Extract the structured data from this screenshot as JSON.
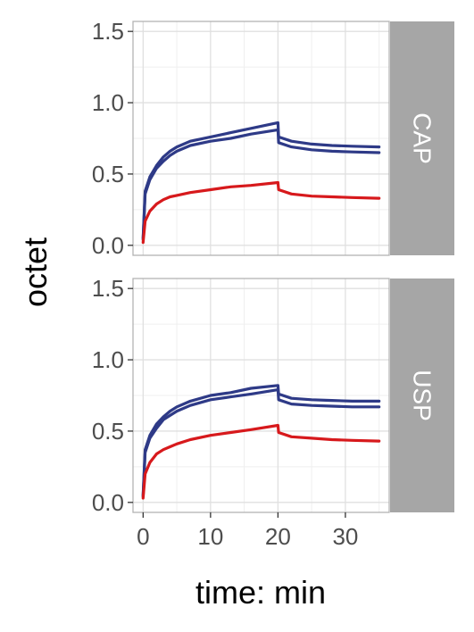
{
  "chart_data": {
    "type": "line",
    "xlabel": "time: min",
    "ylabel": "octet",
    "xlim": [
      -1.5,
      36.5
    ],
    "ylim": [
      -0.07,
      1.57
    ],
    "x_ticks": [
      0,
      10,
      20,
      30
    ],
    "x_tick_labels": [
      "0",
      "10",
      "20",
      "30"
    ],
    "y_ticks": [
      0.0,
      0.5,
      1.0,
      1.5
    ],
    "y_tick_labels": [
      "0.0",
      "0.5",
      "1.0",
      "1.5"
    ],
    "grid": true,
    "legend": "none",
    "colors": {
      "blue": "#2e3a87",
      "red": "#d7191c",
      "strip": "#a6a6a6",
      "grid": "#e0e0e0"
    },
    "facets": [
      {
        "strip_label": "CAP",
        "series": [
          {
            "color": "#2e3a87",
            "points": [
              [
                0,
                0.05
              ],
              [
                0.3,
                0.38
              ],
              [
                1,
                0.48
              ],
              [
                2,
                0.56
              ],
              [
                3,
                0.62
              ],
              [
                4,
                0.66
              ],
              [
                5,
                0.69
              ],
              [
                7,
                0.73
              ],
              [
                10,
                0.76
              ],
              [
                13,
                0.79
              ],
              [
                16,
                0.82
              ],
              [
                20,
                0.86
              ],
              [
                20.1,
                0.76
              ],
              [
                22,
                0.73
              ],
              [
                25,
                0.71
              ],
              [
                28,
                0.7
              ],
              [
                31,
                0.695
              ],
              [
                35,
                0.69
              ]
            ]
          },
          {
            "color": "#2e3a87",
            "points": [
              [
                0,
                0.04
              ],
              [
                0.3,
                0.36
              ],
              [
                1,
                0.46
              ],
              [
                2,
                0.54
              ],
              [
                3,
                0.59
              ],
              [
                4,
                0.63
              ],
              [
                5,
                0.66
              ],
              [
                7,
                0.7
              ],
              [
                10,
                0.73
              ],
              [
                13,
                0.75
              ],
              [
                16,
                0.78
              ],
              [
                20,
                0.81
              ],
              [
                20.1,
                0.72
              ],
              [
                22,
                0.69
              ],
              [
                25,
                0.67
              ],
              [
                28,
                0.66
              ],
              [
                31,
                0.655
              ],
              [
                35,
                0.65
              ]
            ]
          },
          {
            "color": "#d7191c",
            "points": [
              [
                0,
                0.02
              ],
              [
                0.3,
                0.17
              ],
              [
                1,
                0.24
              ],
              [
                2,
                0.29
              ],
              [
                3,
                0.32
              ],
              [
                4,
                0.34
              ],
              [
                5,
                0.35
              ],
              [
                7,
                0.37
              ],
              [
                10,
                0.39
              ],
              [
                13,
                0.41
              ],
              [
                16,
                0.42
              ],
              [
                20,
                0.44
              ],
              [
                20.1,
                0.39
              ],
              [
                22,
                0.36
              ],
              [
                25,
                0.345
              ],
              [
                28,
                0.34
              ],
              [
                31,
                0.335
              ],
              [
                35,
                0.33
              ]
            ]
          }
        ]
      },
      {
        "strip_label": "USP",
        "series": [
          {
            "color": "#2e3a87",
            "points": [
              [
                0,
                0.05
              ],
              [
                0.3,
                0.37
              ],
              [
                1,
                0.47
              ],
              [
                2,
                0.55
              ],
              [
                3,
                0.6
              ],
              [
                4,
                0.64
              ],
              [
                5,
                0.67
              ],
              [
                7,
                0.71
              ],
              [
                10,
                0.75
              ],
              [
                13,
                0.77
              ],
              [
                16,
                0.8
              ],
              [
                20,
                0.82
              ],
              [
                20.1,
                0.76
              ],
              [
                22,
                0.73
              ],
              [
                25,
                0.72
              ],
              [
                28,
                0.715
              ],
              [
                31,
                0.71
              ],
              [
                35,
                0.71
              ]
            ]
          },
          {
            "color": "#2e3a87",
            "points": [
              [
                0,
                0.04
              ],
              [
                0.3,
                0.35
              ],
              [
                1,
                0.45
              ],
              [
                2,
                0.52
              ],
              [
                3,
                0.58
              ],
              [
                4,
                0.61
              ],
              [
                5,
                0.64
              ],
              [
                7,
                0.68
              ],
              [
                10,
                0.72
              ],
              [
                13,
                0.74
              ],
              [
                16,
                0.76
              ],
              [
                20,
                0.79
              ],
              [
                20.1,
                0.72
              ],
              [
                22,
                0.69
              ],
              [
                25,
                0.68
              ],
              [
                28,
                0.675
              ],
              [
                31,
                0.67
              ],
              [
                35,
                0.67
              ]
            ]
          },
          {
            "color": "#d7191c",
            "points": [
              [
                0,
                0.03
              ],
              [
                0.3,
                0.2
              ],
              [
                1,
                0.28
              ],
              [
                2,
                0.34
              ],
              [
                3,
                0.37
              ],
              [
                4,
                0.39
              ],
              [
                5,
                0.41
              ],
              [
                7,
                0.44
              ],
              [
                10,
                0.47
              ],
              [
                13,
                0.49
              ],
              [
                16,
                0.51
              ],
              [
                20,
                0.54
              ],
              [
                20.1,
                0.49
              ],
              [
                22,
                0.46
              ],
              [
                25,
                0.45
              ],
              [
                28,
                0.44
              ],
              [
                31,
                0.435
              ],
              [
                35,
                0.43
              ]
            ]
          }
        ]
      }
    ]
  }
}
